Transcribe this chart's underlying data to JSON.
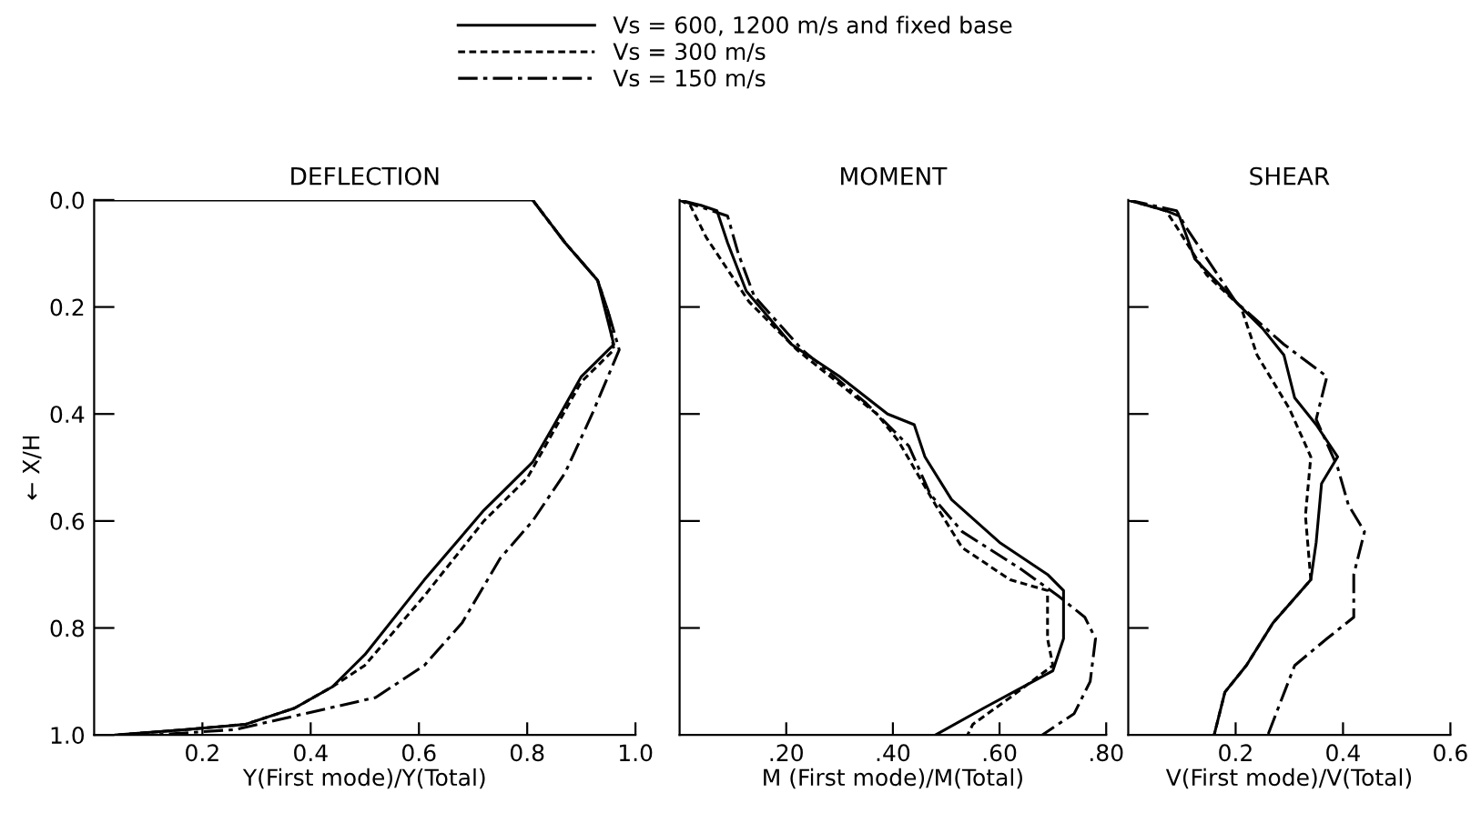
{
  "chart_data": [
    {
      "type": "line",
      "title": "DEFLECTION",
      "xlabel": "Y(First mode)/Y(Total)",
      "ylabel": "← X/H",
      "legend": "top",
      "xlim": [
        0,
        1.0
      ],
      "xticks": [
        {
          "value": 0.2,
          "label": "0.2"
        },
        {
          "value": 0.4,
          "label": "0.4"
        },
        {
          "value": 0.6,
          "label": "0.6"
        },
        {
          "value": 0.8,
          "label": "0.8"
        },
        {
          "value": 1.0,
          "label": "1.0"
        }
      ],
      "ylim": [
        1.0,
        0.0
      ],
      "yticks": [
        {
          "value": 0.0,
          "label": "0.0"
        },
        {
          "value": 0.2,
          "label": "0.2"
        },
        {
          "value": 0.4,
          "label": "0.4"
        },
        {
          "value": 0.6,
          "label": "0.6"
        },
        {
          "value": 0.8,
          "label": "0.8"
        },
        {
          "value": 1.0,
          "label": "1.0"
        }
      ],
      "grid": false,
      "series": [
        {
          "name": "Vs = 600, 1200 m/s and fixed base",
          "color": "#000000",
          "line_style": "solid",
          "x": [
            0.0,
            0.81,
            0.87,
            0.93,
            0.94,
            0.95,
            0.96,
            0.9,
            0.85,
            0.81,
            0.76,
            0.72,
            0.61,
            0.5,
            0.44,
            0.37,
            0.28,
            0.17,
            0.04
          ],
          "values": [
            0.0,
            0.0,
            0.08,
            0.15,
            0.19,
            0.23,
            0.27,
            0.33,
            0.42,
            0.49,
            0.54,
            0.58,
            0.71,
            0.85,
            0.91,
            0.95,
            0.98,
            0.99,
            1.0
          ]
        },
        {
          "name": "Vs = 300 m/s",
          "color": "#000000",
          "line_style": "dashed",
          "x": [
            0.81,
            0.87,
            0.93,
            0.95,
            0.96,
            0.9,
            0.85,
            0.8,
            0.72,
            0.61,
            0.5,
            0.44,
            0.37,
            0.28,
            0.17,
            0.04
          ],
          "values": [
            0.0,
            0.08,
            0.15,
            0.21,
            0.28,
            0.34,
            0.43,
            0.52,
            0.6,
            0.74,
            0.87,
            0.91,
            0.95,
            0.98,
            0.99,
            1.0
          ]
        },
        {
          "name": "Vs = 150 m/s",
          "color": "#000000",
          "line_style": "dashdot",
          "x": [
            0.81,
            0.87,
            0.93,
            0.95,
            0.97,
            0.92,
            0.87,
            0.81,
            0.75,
            0.68,
            0.61,
            0.52,
            0.39,
            0.26,
            0.11
          ],
          "values": [
            0.0,
            0.08,
            0.15,
            0.21,
            0.28,
            0.4,
            0.51,
            0.6,
            0.67,
            0.79,
            0.87,
            0.93,
            0.96,
            0.99,
            1.0
          ]
        }
      ]
    },
    {
      "type": "line",
      "title": "MOMENT",
      "xlabel": "M (First mode)/M(Total)",
      "tick_labels": "x",
      "xlim": [
        0,
        0.8
      ],
      "xticks": [
        {
          "value": 0.2,
          "label": ".20"
        },
        {
          "value": 0.4,
          "label": ".40"
        },
        {
          "value": 0.6,
          "label": ".60"
        },
        {
          "value": 0.8,
          "label": ".80"
        }
      ],
      "ylim": [
        1.0,
        0.0
      ],
      "grid": false,
      "series": [
        {
          "color": "#000000",
          "line_style": "solid",
          "x": [
            0.0,
            0.04,
            0.07,
            0.09,
            0.125,
            0.21,
            0.3,
            0.39,
            0.44,
            0.46,
            0.51,
            0.6,
            0.69,
            0.72,
            0.72,
            0.7,
            0.57,
            0.48
          ],
          "values": [
            0.0,
            0.01,
            0.02,
            0.08,
            0.17,
            0.27,
            0.33,
            0.4,
            0.42,
            0.48,
            0.56,
            0.64,
            0.7,
            0.73,
            0.82,
            0.88,
            0.95,
            1.0
          ]
        },
        {
          "color": "#000000",
          "line_style": "dashed",
          "x": [
            0.0,
            0.02,
            0.05,
            0.13,
            0.22,
            0.37,
            0.41,
            0.48,
            0.53,
            0.62,
            0.69,
            0.69,
            0.7,
            0.62,
            0.55,
            0.54
          ],
          "values": [
            0.0,
            0.01,
            0.07,
            0.19,
            0.28,
            0.4,
            0.45,
            0.57,
            0.65,
            0.71,
            0.73,
            0.82,
            0.87,
            0.93,
            0.98,
            1.0
          ]
        },
        {
          "color": "#000000",
          "line_style": "dashdot",
          "x": [
            0.0,
            0.09,
            0.11,
            0.14,
            0.23,
            0.35,
            0.43,
            0.47,
            0.53,
            0.64,
            0.71,
            0.76,
            0.78,
            0.77,
            0.74,
            0.68
          ],
          "values": [
            0.0,
            0.03,
            0.1,
            0.18,
            0.28,
            0.38,
            0.46,
            0.55,
            0.62,
            0.69,
            0.74,
            0.78,
            0.82,
            0.9,
            0.96,
            1.0
          ]
        }
      ]
    },
    {
      "type": "line",
      "title": "SHEAR",
      "xlabel": "V(First mode)/V(Total)",
      "tick_labels": "x",
      "xlim": [
        0,
        0.6
      ],
      "xticks": [
        {
          "value": 0.2,
          "label": "0.2"
        },
        {
          "value": 0.4,
          "label": "0.4"
        },
        {
          "value": 0.6,
          "label": "0.6"
        }
      ],
      "ylim": [
        1.0,
        0.0
      ],
      "grid": false,
      "series": [
        {
          "color": "#000000",
          "line_style": "solid",
          "x": [
            0.0,
            0.07,
            0.095,
            0.124,
            0.21,
            0.25,
            0.29,
            0.31,
            0.35,
            0.39,
            0.36,
            0.35,
            0.34,
            0.27,
            0.22,
            0.18,
            0.16
          ],
          "values": [
            0.0,
            0.02,
            0.03,
            0.11,
            0.2,
            0.24,
            0.29,
            0.37,
            0.42,
            0.48,
            0.53,
            0.64,
            0.71,
            0.79,
            0.87,
            0.92,
            1.0
          ]
        },
        {
          "color": "#000000",
          "line_style": "dashed",
          "x": [
            0.0,
            0.07,
            0.09,
            0.146,
            0.21,
            0.24,
            0.3,
            0.34,
            0.33,
            0.34,
            0.27,
            0.22,
            0.18,
            0.16
          ],
          "values": [
            0.0,
            0.02,
            0.05,
            0.14,
            0.2,
            0.29,
            0.39,
            0.48,
            0.59,
            0.71,
            0.79,
            0.87,
            0.92,
            1.0
          ]
        },
        {
          "color": "#000000",
          "line_style": "dashdot",
          "x": [
            0.0,
            0.09,
            0.107,
            0.2,
            0.29,
            0.37,
            0.35,
            0.39,
            0.41,
            0.44,
            0.42,
            0.42,
            0.37,
            0.31,
            0.26
          ],
          "values": [
            0.0,
            0.02,
            0.05,
            0.19,
            0.27,
            0.33,
            0.41,
            0.5,
            0.57,
            0.62,
            0.7,
            0.78,
            0.82,
            0.87,
            1.0
          ]
        }
      ]
    }
  ]
}
